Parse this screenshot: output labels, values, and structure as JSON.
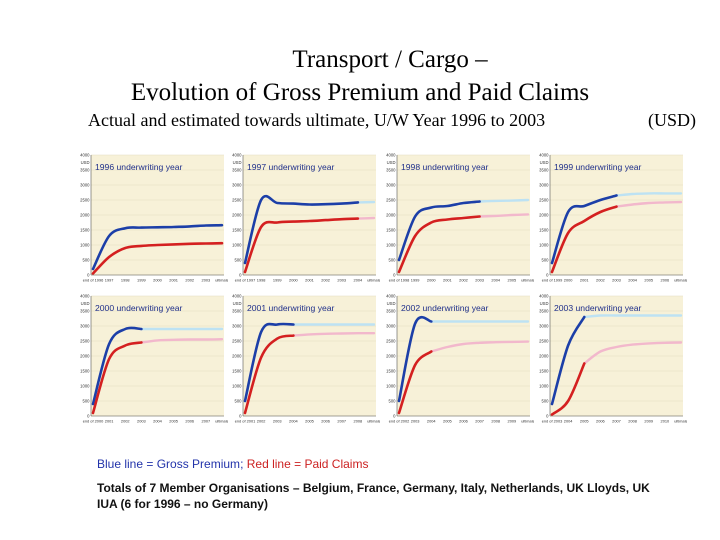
{
  "header": {
    "title_line1": "Transport / Cargo –",
    "title_line2": "Evolution of Gross Premium and Paid Claims",
    "subtitle": "Actual and estimated towards ultimate, U/W Year 1996 to 2003",
    "unit": "(USD)"
  },
  "footer": {
    "legend_blue": "Blue line = Gross Premium",
    "legend_sep": ";",
    "legend_red": "Red line = Paid Claims",
    "note": "Totals of 7 Member Organisations – Belgium, France, Germany, Italy, Netherlands, UK Lloyds, UK IUA (6 for 1996 – no Germany)"
  },
  "colors": {
    "background": "#f7f1d8",
    "grid": "#e2dbc0",
    "premium_actual": "#1c3fa8",
    "premium_estimate": "#bde2f3",
    "claims_actual": "#d42020",
    "claims_estimate": "#f2b8cc"
  },
  "chart_data": [
    {
      "type": "line",
      "title": "1996 underwriting year",
      "ylabel": "USD",
      "ylim": [
        0,
        4000
      ],
      "y_ticks": [
        "0",
        "500",
        "1000",
        "1500",
        "2000",
        "2500",
        "3000",
        "3500",
        "4000"
      ],
      "x": [
        "end of 1996",
        "1997",
        "1998",
        "1999",
        "2000",
        "2001",
        "2002",
        "2003",
        "ultimate"
      ],
      "series": [
        {
          "name": "Gross Premium",
          "values": [
            200,
            1300,
            1560,
            1580,
            1590,
            1600,
            1620,
            1650,
            1660
          ],
          "estimate_from": 8
        },
        {
          "name": "Paid Claims",
          "values": [
            50,
            600,
            900,
            970,
            1000,
            1020,
            1040,
            1050,
            1060
          ],
          "estimate_from": 8
        }
      ]
    },
    {
      "type": "line",
      "title": "1997 underwriting year",
      "ylabel": "USD",
      "ylim": [
        0,
        4000
      ],
      "y_ticks": [
        "0",
        "500",
        "1000",
        "1500",
        "2000",
        "2500",
        "3000",
        "3500",
        "4000"
      ],
      "x": [
        "end of 1997",
        "1998",
        "1999",
        "2000",
        "2001",
        "2002",
        "2003",
        "2004",
        "ultimate"
      ],
      "series": [
        {
          "name": "Gross Premium",
          "values": [
            400,
            2500,
            2400,
            2380,
            2350,
            2360,
            2380,
            2420,
            2430
          ],
          "estimate_from": 7
        },
        {
          "name": "Paid Claims",
          "values": [
            100,
            1600,
            1750,
            1780,
            1800,
            1830,
            1860,
            1880,
            1900
          ],
          "estimate_from": 7
        }
      ]
    },
    {
      "type": "line",
      "title": "1998 underwriting year",
      "ylabel": "USD",
      "ylim": [
        0,
        4000
      ],
      "y_ticks": [
        "0",
        "500",
        "1000",
        "1500",
        "2000",
        "2500",
        "3000",
        "3500",
        "4000"
      ],
      "x": [
        "end of 1998",
        "1999",
        "2000",
        "2001",
        "2002",
        "2003",
        "2004",
        "2005",
        "ultimate"
      ],
      "series": [
        {
          "name": "Gross Premium",
          "values": [
            500,
            1950,
            2250,
            2300,
            2400,
            2450,
            2470,
            2480,
            2500
          ],
          "estimate_from": 5
        },
        {
          "name": "Paid Claims",
          "values": [
            100,
            1300,
            1750,
            1850,
            1900,
            1950,
            1970,
            2000,
            2020
          ],
          "estimate_from": 5
        }
      ]
    },
    {
      "type": "line",
      "title": "1999 underwriting year",
      "ylabel": "USD",
      "ylim": [
        0,
        4000
      ],
      "y_ticks": [
        "0",
        "500",
        "1000",
        "1500",
        "2000",
        "2500",
        "3000",
        "3500",
        "4000"
      ],
      "x": [
        "end of 1999",
        "2000",
        "2001",
        "2002",
        "2003",
        "2004",
        "2005",
        "2006",
        "ultimate"
      ],
      "series": [
        {
          "name": "Gross Premium",
          "values": [
            400,
            2100,
            2300,
            2500,
            2650,
            2700,
            2720,
            2720,
            2720
          ],
          "estimate_from": 4
        },
        {
          "name": "Paid Claims",
          "values": [
            100,
            1400,
            1800,
            2100,
            2280,
            2350,
            2400,
            2420,
            2430
          ],
          "estimate_from": 4
        }
      ]
    },
    {
      "type": "line",
      "title": "2000 underwriting year",
      "ylabel": "USD",
      "ylim": [
        0,
        4000
      ],
      "y_ticks": [
        "0",
        "500",
        "1000",
        "1500",
        "2000",
        "2500",
        "3000",
        "3500",
        "4000"
      ],
      "x": [
        "end of 2000",
        "2001",
        "2002",
        "2003",
        "2004",
        "2005",
        "2006",
        "2007",
        "ultimate"
      ],
      "series": [
        {
          "name": "Gross Premium",
          "values": [
            400,
            2400,
            2900,
            2900,
            2900,
            2900,
            2900,
            2900,
            2900
          ],
          "estimate_from": 3
        },
        {
          "name": "Paid Claims",
          "values": [
            100,
            1900,
            2350,
            2450,
            2520,
            2540,
            2550,
            2550,
            2560
          ],
          "estimate_from": 3
        }
      ]
    },
    {
      "type": "line",
      "title": "2001 underwriting year",
      "ylabel": "USD",
      "ylim": [
        0,
        4000
      ],
      "y_ticks": [
        "0",
        "500",
        "1000",
        "1500",
        "2000",
        "2500",
        "3000",
        "3500",
        "4000"
      ],
      "x": [
        "end of 2001",
        "2002",
        "2003",
        "2004",
        "2005",
        "2006",
        "2007",
        "2008",
        "ultimate"
      ],
      "series": [
        {
          "name": "Gross Premium",
          "values": [
            500,
            2800,
            3050,
            3050,
            3050,
            3050,
            3050,
            3050,
            3050
          ],
          "estimate_from": 3
        },
        {
          "name": "Paid Claims",
          "values": [
            100,
            1950,
            2580,
            2680,
            2720,
            2740,
            2750,
            2760,
            2760
          ],
          "estimate_from": 3
        }
      ]
    },
    {
      "type": "line",
      "title": "2002 underwriting year",
      "ylabel": "USD",
      "ylim": [
        0,
        4000
      ],
      "y_ticks": [
        "0",
        "500",
        "1000",
        "1500",
        "2000",
        "2500",
        "3000",
        "3500",
        "4000"
      ],
      "x": [
        "end of 2002",
        "2003",
        "2004",
        "2005",
        "2006",
        "2007",
        "2008",
        "2009",
        "ultimate"
      ],
      "series": [
        {
          "name": "Gross Premium",
          "values": [
            500,
            3080,
            3150,
            3150,
            3150,
            3150,
            3150,
            3150,
            3150
          ],
          "estimate_from": 2
        },
        {
          "name": "Paid Claims",
          "values": [
            100,
            1700,
            2150,
            2300,
            2400,
            2440,
            2460,
            2470,
            2480
          ],
          "estimate_from": 2
        }
      ]
    },
    {
      "type": "line",
      "title": "2003 underwriting year",
      "ylabel": "USD",
      "ylim": [
        0,
        4000
      ],
      "y_ticks": [
        "0",
        "500",
        "1000",
        "1500",
        "2000",
        "2500",
        "3000",
        "3500",
        "4000"
      ],
      "x": [
        "end of 2003",
        "2004",
        "2005",
        "2006",
        "2007",
        "2008",
        "2009",
        "2010",
        "ultimate"
      ],
      "series": [
        {
          "name": "Gross Premium",
          "values": [
            400,
            2350,
            3300,
            3350,
            3350,
            3350,
            3350,
            3350,
            3350
          ],
          "estimate_from": 2
        },
        {
          "name": "Paid Claims",
          "values": [
            50,
            500,
            1750,
            2150,
            2300,
            2380,
            2420,
            2440,
            2450
          ],
          "estimate_from": 2
        }
      ]
    }
  ]
}
